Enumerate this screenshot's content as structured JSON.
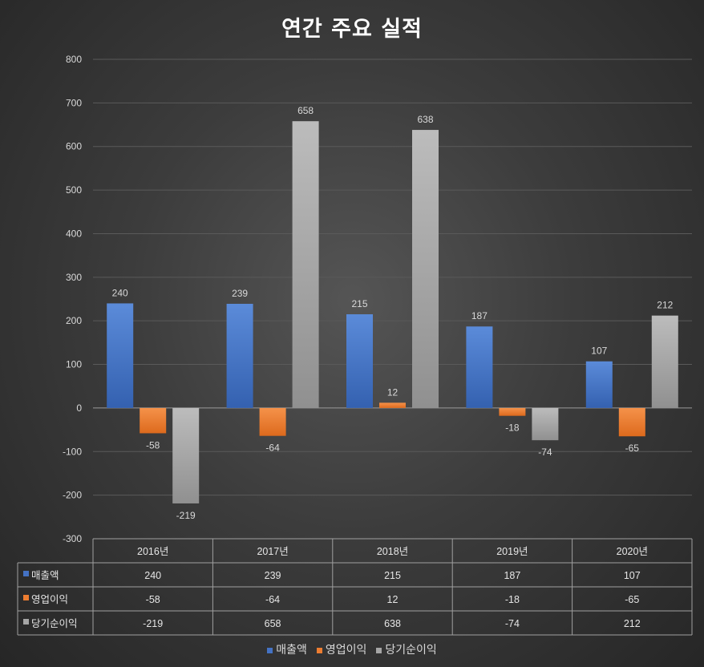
{
  "chart_data": {
    "type": "bar",
    "title": "연간 주요 실적",
    "categories": [
      "2016년",
      "2017년",
      "2018년",
      "2019년",
      "2020년"
    ],
    "series": [
      {
        "name": "매출액",
        "values": [
          240,
          239,
          215,
          187,
          107
        ],
        "color": "#4472c4"
      },
      {
        "name": "영업이익",
        "values": [
          -58,
          -64,
          12,
          -18,
          -65
        ],
        "color": "#ed7d31"
      },
      {
        "name": "당기순이익",
        "values": [
          -219,
          658,
          638,
          -74,
          212
        ],
        "color": "#a5a5a5"
      }
    ],
    "ylim": [
      -300,
      800
    ],
    "yticks": [
      800,
      700,
      600,
      500,
      400,
      300,
      200,
      100,
      0,
      -100,
      -200,
      -300
    ],
    "grid": true,
    "data_table": true,
    "legend": "bottom"
  }
}
